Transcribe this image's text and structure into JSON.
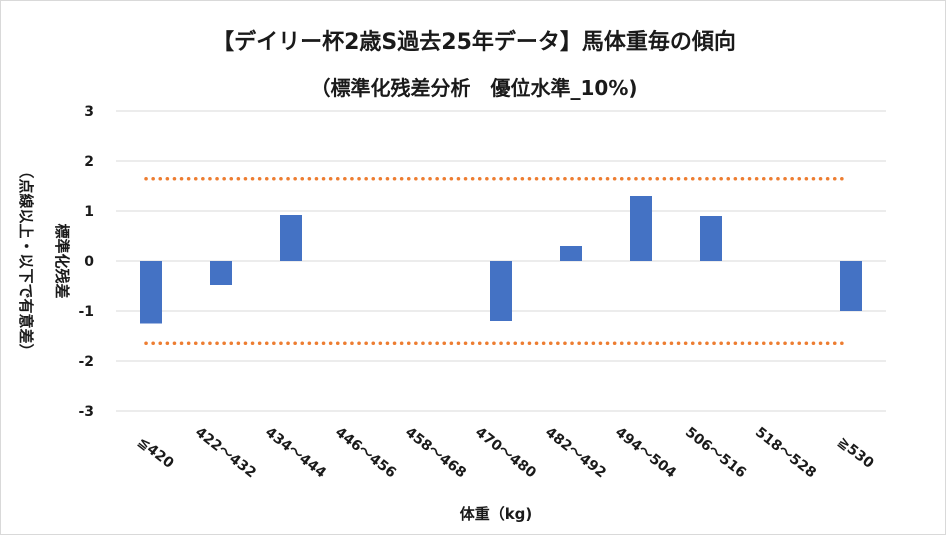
{
  "chart_data": {
    "type": "bar",
    "title": "【デイリー杯2歳S過去25年データ】馬体重毎の傾向",
    "subtitle": "（標準化残差分析　優位水準_10%)",
    "xlabel": "体重（kg)",
    "ylabel_outer": "（点線以上・以下で有意差）",
    "ylabel_inner": "標準化残差",
    "categories": [
      "≦420",
      "422～432",
      "434～444",
      "446～456",
      "458～468",
      "470～480",
      "482～492",
      "494～504",
      "506～516",
      "518～528",
      "≧530"
    ],
    "values": [
      -1.25,
      -0.48,
      0.92,
      0.0,
      0.0,
      -1.2,
      0.3,
      1.3,
      0.9,
      0.0,
      -1.0
    ],
    "ylim": [
      -3,
      3
    ],
    "yticks": [
      "3",
      "2",
      "1",
      "0",
      "-1",
      "-2",
      "-3"
    ],
    "threshold_upper": 1.645,
    "threshold_lower": -1.645,
    "grid": true,
    "colors": {
      "bar": "#4472c4",
      "threshold": "#ed7d31",
      "grid": "#d9d9d9"
    }
  }
}
